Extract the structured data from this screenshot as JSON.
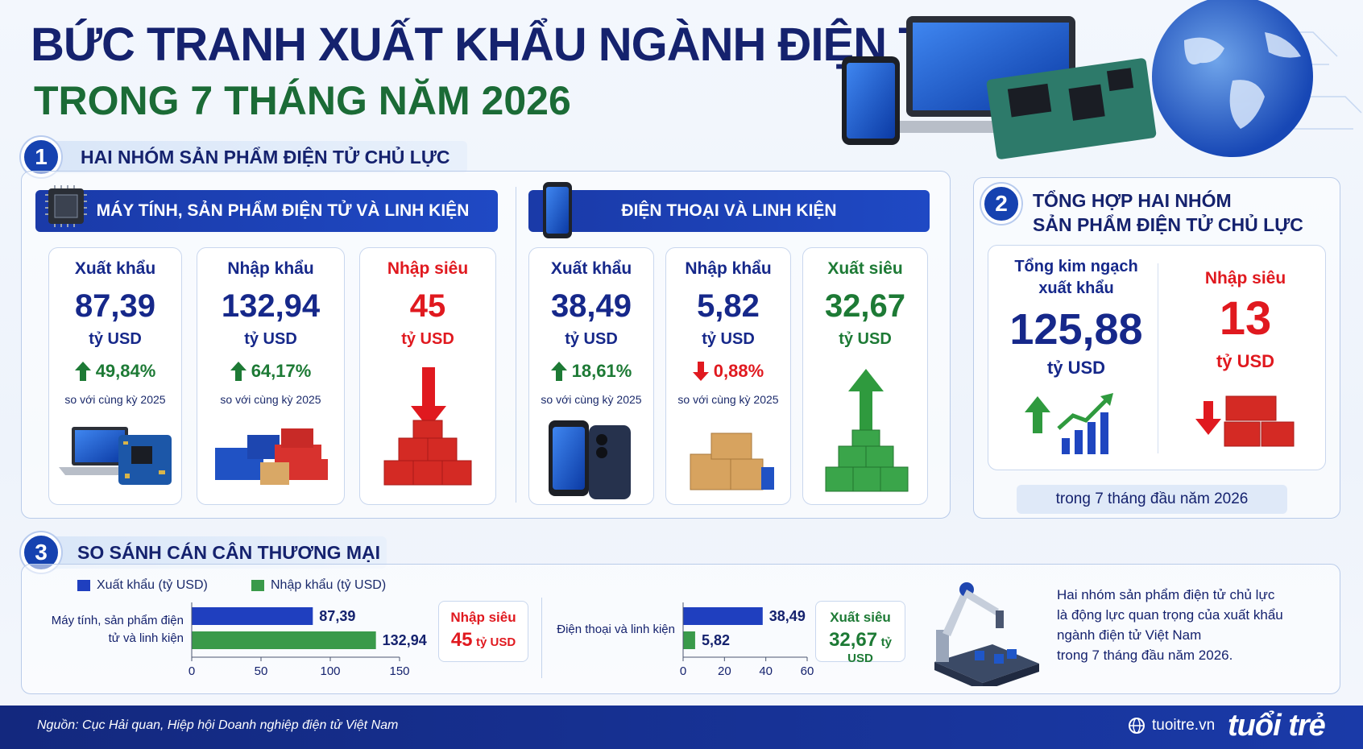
{
  "title": {
    "line1": "BỨC TRANH XUẤT KHẨU NGÀNH ĐIỆN TỬ",
    "line2": "TRONG 7 THÁNG NĂM 2026"
  },
  "section1": {
    "num": "1",
    "label": "HAI NHÓM SẢN PHẨM ĐIỆN TỬ CHỦ LỰC",
    "groupA": {
      "title": "MÁY TÍNH, SẢN PHẨM ĐIỆN TỬ VÀ LINH KIỆN",
      "cards": [
        {
          "label": "Xuất khẩu",
          "value": "87,39",
          "unit": "tỷ USD",
          "pct": "49,84%",
          "trend": "up",
          "compare": "so với cùng kỳ 2025"
        },
        {
          "label": "Nhập khẩu",
          "value": "132,94",
          "unit": "tỷ USD",
          "pct": "64,17%",
          "trend": "up",
          "compare": "so với cùng kỳ 2025"
        },
        {
          "label": "Nhập siêu",
          "value": "45",
          "unit": "tỷ USD"
        }
      ]
    },
    "groupB": {
      "title": "ĐIỆN THOẠI VÀ LINH KIỆN",
      "cards": [
        {
          "label": "Xuất khẩu",
          "value": "38,49",
          "unit": "tỷ USD",
          "pct": "18,61%",
          "trend": "up",
          "compare": "so với cùng kỳ 2025"
        },
        {
          "label": "Nhập khẩu",
          "value": "5,82",
          "unit": "tỷ USD",
          "pct": "0,88%",
          "trend": "down",
          "compare": "so với cùng kỳ 2025"
        },
        {
          "label": "Xuất siêu",
          "value": "32,67",
          "unit": "tỷ USD"
        }
      ]
    }
  },
  "section2": {
    "num": "2",
    "label_line1": "TỔNG HỢP HAI NHÓM",
    "label_line2": "SẢN PHẨM ĐIỆN TỬ CHỦ LỰC",
    "total_label_line1": "Tổng kim ngạch",
    "total_label_line2": "xuất khẩu",
    "total_value": "125,88",
    "total_unit": "tỷ USD",
    "deficit_label": "Nhập siêu",
    "deficit_value": "13",
    "deficit_unit": "tỷ USD",
    "period": "trong 7 tháng đầu năm 2026"
  },
  "section3": {
    "num": "3",
    "label": "SO SÁNH CÁN CÂN THƯƠNG MẠI",
    "legend": {
      "export": "Xuất khẩu (tỷ USD)",
      "import": "Nhập khẩu (tỷ USD)"
    },
    "badgeA": {
      "label": "Nhập siêu",
      "value": "45",
      "unit": "tỷ USD"
    },
    "badgeB": {
      "label": "Xuất siêu",
      "value": "32,67",
      "unit": "tỷ USD"
    },
    "note_lines": [
      "Hai nhóm sản phẩm điện tử chủ lực",
      "là động lực quan trọng của xuất khẩu",
      "ngành điện tử Việt Nam",
      "trong 7 tháng đầu năm 2026."
    ]
  },
  "chart_data": [
    {
      "type": "bar",
      "orientation": "horizontal",
      "categories": [
        "Máy tính, sản phẩm điện tử và linh kiện"
      ],
      "series": [
        {
          "name": "Xuất khẩu (tỷ USD)",
          "values": [
            87.39
          ],
          "labels": [
            "87,39"
          ]
        },
        {
          "name": "Nhập khẩu (tỷ USD)",
          "values": [
            132.94
          ],
          "labels": [
            "132,94"
          ]
        }
      ],
      "xlim": [
        0,
        150
      ],
      "xticks": [
        "0",
        "50",
        "100",
        "150"
      ],
      "colors": {
        "export": "#1f3fbf",
        "import": "#3a9a4a"
      }
    },
    {
      "type": "bar",
      "orientation": "horizontal",
      "categories": [
        "Điện thoại và linh kiện"
      ],
      "series": [
        {
          "name": "Xuất khẩu (tỷ USD)",
          "values": [
            38.49
          ],
          "labels": [
            "38,49"
          ]
        },
        {
          "name": "Nhập khẩu (tỷ USD)",
          "values": [
            5.82
          ],
          "labels": [
            "5,82"
          ]
        }
      ],
      "xlim": [
        0,
        60
      ],
      "xticks": [
        "0",
        "20",
        "40",
        "60"
      ],
      "colors": {
        "export": "#1f3fbf",
        "import": "#3a9a4a"
      }
    }
  ],
  "footer": {
    "source": "Nguồn: Cục Hải quan, Hiệp hội Doanh nghiệp điện tử Việt Nam",
    "site": "tuoitre.vn",
    "brand": "tuổi trẻ"
  },
  "colors": {
    "navy": "#16288a",
    "green": "#1d7a35",
    "red": "#e0191f",
    "band": "#1a3aa8"
  }
}
